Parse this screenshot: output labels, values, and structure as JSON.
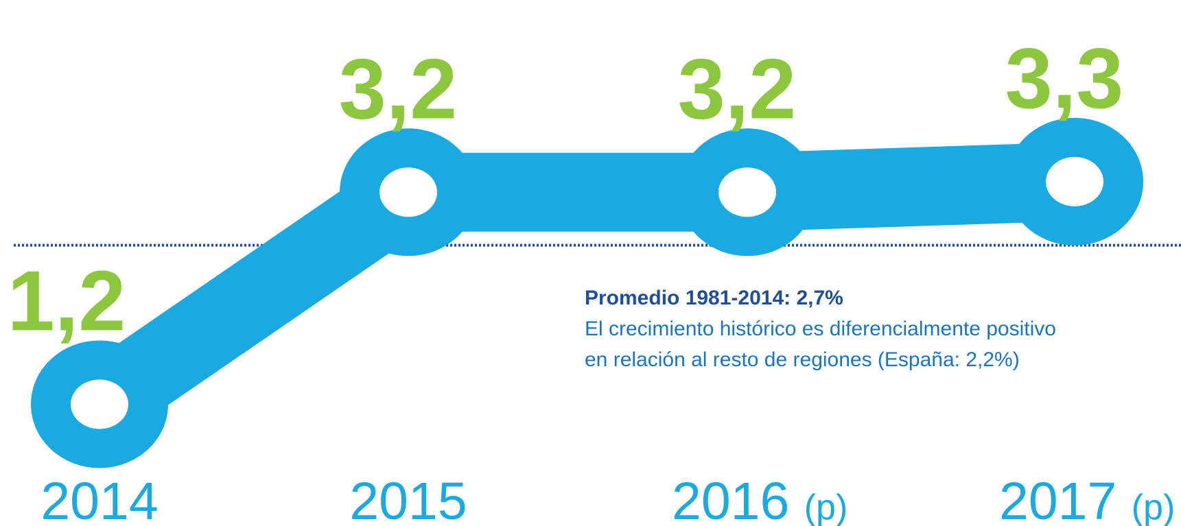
{
  "chart_data": {
    "type": "line",
    "categories": [
      "2014",
      "2015",
      "2016",
      "2017"
    ],
    "category_notes": [
      null,
      null,
      "(p)",
      "(p)"
    ],
    "series": [
      {
        "color": "#1ba9e1",
        "values": [
          1.2,
          3.2,
          3.2,
          3.3
        ],
        "value_labels": [
          "1,2",
          "3,2",
          "3,2",
          "3,3"
        ]
      }
    ],
    "value_label_color": "#8dc63f",
    "ylim": [
      0,
      5
    ],
    "reference_line": {
      "value": 2.7,
      "color": "#1f4e9c"
    },
    "annotation": {
      "title": "Promedio 1981-2014: 2,7%",
      "lines": [
        "El crecimiento histórico es diferencialmente positivo",
        "en relación al resto de regiones (España: 2,2%)"
      ]
    }
  }
}
